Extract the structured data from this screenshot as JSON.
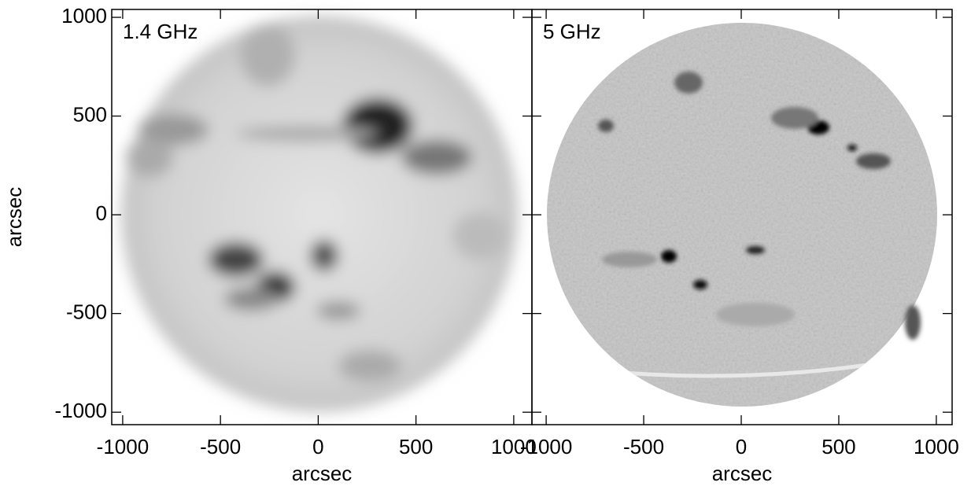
{
  "chart_data": [
    {
      "type": "image",
      "title": "1.4 GHz",
      "xlabel": "arcsec",
      "ylabel": "arcsec",
      "xlim": [
        -1056,
        1093
      ],
      "ylim": [
        -1063,
        1040
      ],
      "xticks": [
        -1000,
        -500,
        0,
        500,
        1000
      ],
      "yticks": [
        -1000,
        -500,
        0,
        500,
        1000
      ]
    },
    {
      "type": "image",
      "title": "5 GHz",
      "xlabel": "arcsec",
      "xlim": [
        -1073,
        1081
      ],
      "ylim": [
        -1063,
        1040
      ],
      "xticks": [
        -1000,
        -500,
        0,
        500,
        1000
      ],
      "yticks": [
        -1000,
        -500,
        0,
        500,
        1000
      ]
    }
  ]
}
